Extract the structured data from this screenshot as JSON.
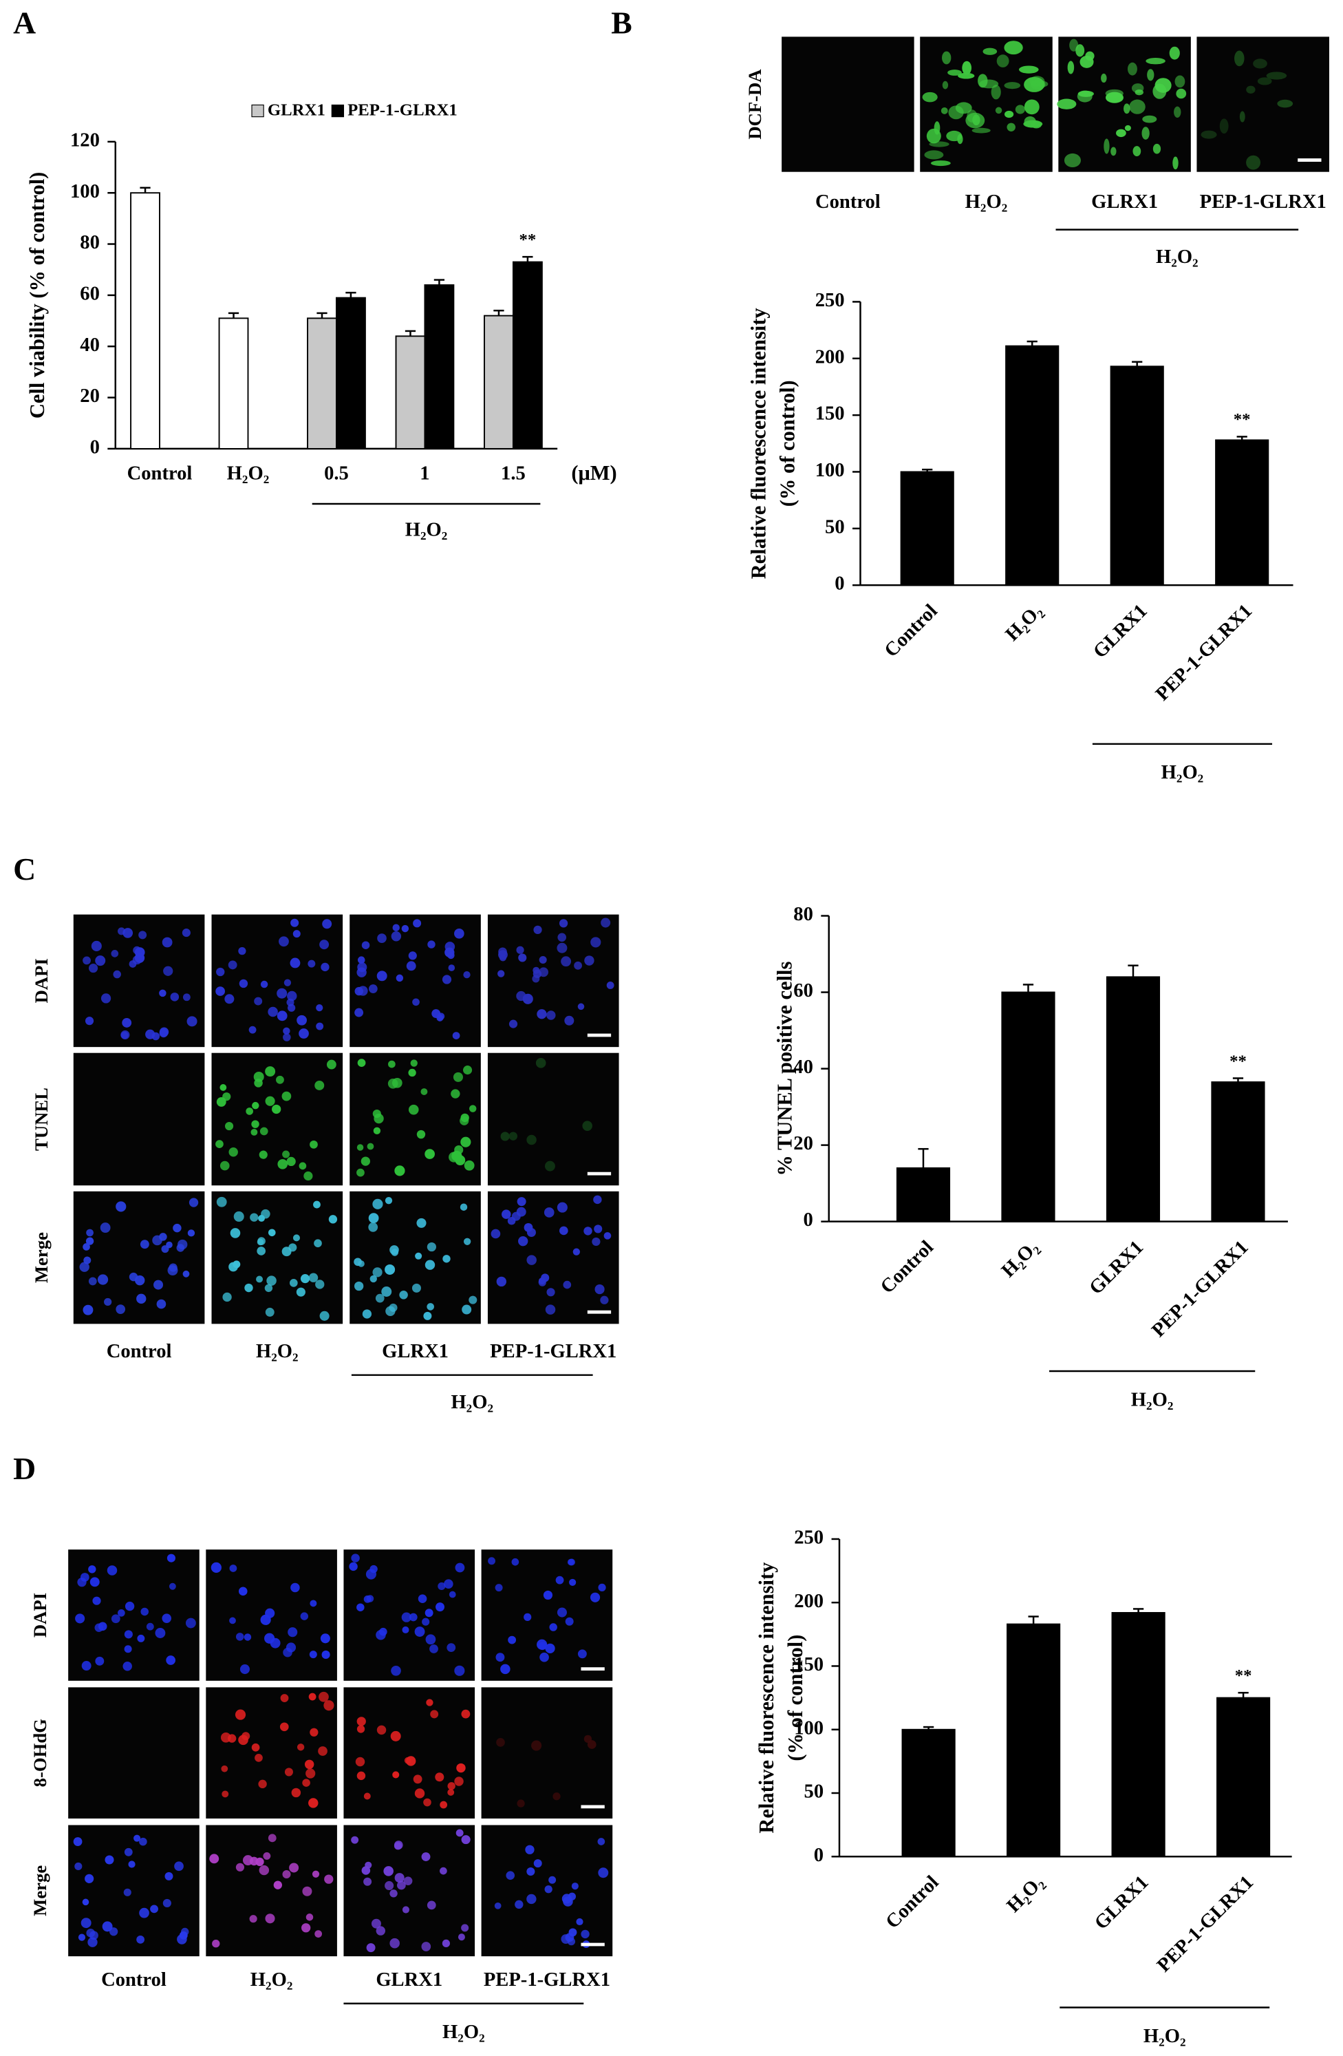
{
  "panel_labels": [
    "A",
    "B",
    "C",
    "D"
  ],
  "chart_data": [
    {
      "type": "bar",
      "categories": [
        "Control",
        "H₂O₂",
        "0.5",
        "1",
        "1.5"
      ],
      "series": [
        {
          "color": "#ffffff",
          "values": [
            100,
            51,
            null,
            null,
            null
          ],
          "errors": [
            2,
            2,
            null,
            null,
            null
          ]
        },
        {
          "name": "GLRX1",
          "color": "#c8c8c8",
          "values": [
            null,
            null,
            51,
            44,
            52
          ],
          "errors": [
            null,
            null,
            2,
            2,
            2
          ]
        },
        {
          "name": "PEP-1-GLRX1",
          "color": "#000000",
          "values": [
            null,
            null,
            59,
            64,
            73
          ],
          "errors": [
            null,
            null,
            2,
            2,
            2
          ]
        }
      ],
      "significance": [
        null,
        null,
        null,
        null,
        "**"
      ],
      "ylabel": "Cell viability (% of control)",
      "ylim": [
        0,
        120
      ],
      "yticks": [
        0,
        20,
        40,
        60,
        80,
        100,
        120
      ],
      "grid": false,
      "legend": "top",
      "x_unit": "(μM)",
      "group_label": "H₂O₂"
    },
    {
      "type": "bar",
      "categories": [
        "Control",
        "H₂O₂",
        "GLRX1",
        "PEP-1-GLRX1"
      ],
      "series": [
        {
          "color": "#000000",
          "values": [
            100,
            211,
            193,
            128
          ],
          "errors": [
            2,
            4,
            4,
            3
          ]
        }
      ],
      "significance": [
        null,
        null,
        null,
        "**"
      ],
      "ylabel": [
        "Relative fluorescence intensity",
        "(% of control)"
      ],
      "ylim": [
        0,
        250
      ],
      "yticks": [
        0,
        50,
        100,
        150,
        200,
        250
      ],
      "grid": false,
      "xtick_rotation": 45,
      "group_label": "H₂O₂"
    },
    {
      "type": "bar",
      "categories": [
        "Control",
        "H₂O₂",
        "GLRX1",
        "PEP-1-GLRX1"
      ],
      "series": [
        {
          "color": "#000000",
          "values": [
            14,
            60,
            64,
            36.5
          ],
          "errors": [
            5,
            2,
            3,
            1
          ]
        }
      ],
      "significance": [
        null,
        null,
        null,
        "**"
      ],
      "ylabel": "% TUNEL positive cells",
      "ylim": [
        0,
        80
      ],
      "yticks": [
        0,
        20,
        40,
        60,
        80
      ],
      "grid": false,
      "xtick_rotation": 45,
      "group_label": "H₂O₂"
    },
    {
      "type": "bar",
      "categories": [
        "Control",
        "H₂O₂",
        "GLRX1",
        "PEP-1-GLRX1"
      ],
      "series": [
        {
          "color": "#000000",
          "values": [
            100,
            183,
            192,
            125
          ],
          "errors": [
            2,
            6,
            3,
            4
          ]
        }
      ],
      "significance": [
        null,
        null,
        null,
        "**"
      ],
      "ylabel": [
        "Relative fluorescence intensity",
        "(% of control)"
      ],
      "ylim": [
        0,
        250
      ],
      "yticks": [
        0,
        50,
        100,
        150,
        200,
        250
      ],
      "grid": false,
      "xtick_rotation": 45,
      "group_label": "H₂O₂"
    }
  ],
  "micrographs": [
    {
      "rows": [
        "DCF-DA"
      ],
      "columns": [
        "Control",
        "H₂O₂",
        "GLRX1",
        "PEP-1-GLRX1"
      ],
      "group_label": "H₂O₂"
    },
    {
      "rows": [
        "DAPI",
        "TUNEL",
        "Merge"
      ],
      "columns": [
        "Control",
        "H₂O₂",
        "GLRX1",
        "PEP-1-GLRX1"
      ],
      "group_label": "H₂O₂"
    },
    {
      "rows": [
        "DAPI",
        "8-OHdG",
        "Merge"
      ],
      "columns": [
        "Control",
        "H₂O₂",
        "GLRX1",
        "PEP-1-GLRX1"
      ],
      "group_label": "H₂O₂"
    }
  ]
}
